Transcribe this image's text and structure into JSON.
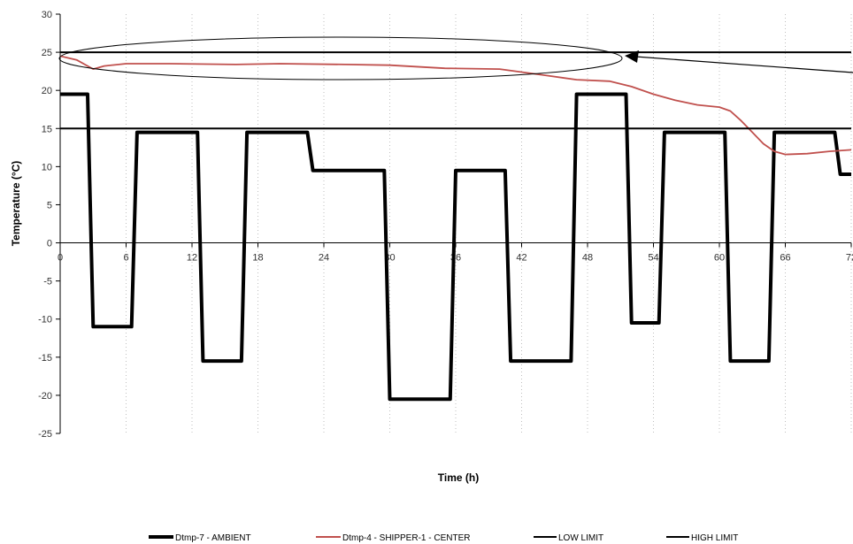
{
  "chart_data": {
    "type": "line",
    "title": "",
    "xlabel": "Time (h)",
    "ylabel": "Temperature (°C)",
    "xlim": [
      0,
      72
    ],
    "ylim": [
      -25,
      30
    ],
    "x_ticks": [
      0,
      6,
      12,
      18,
      24,
      30,
      36,
      42,
      48,
      54,
      60,
      66,
      72
    ],
    "x_tick_labels": [
      "0",
      "6",
      "12",
      "18",
      "24",
      "30",
      "36",
      "42",
      "48",
      "54",
      "60",
      "66",
      "72"
    ],
    "y_ticks": [
      -25,
      -20,
      -15,
      -10,
      -5,
      0,
      5,
      10,
      15,
      20,
      25,
      30
    ],
    "grid": "vertical dotted",
    "legend_position": "bottom",
    "series": [
      {
        "name": "Dtmp-7 - AMBIENT",
        "color": "#000000",
        "x": [
          0,
          2.5,
          3.0,
          6.5,
          7.0,
          12.5,
          13.0,
          16.5,
          17.0,
          22.5,
          23.0,
          29.5,
          30.0,
          35.5,
          36.0,
          40.5,
          41.0,
          46.5,
          47.0,
          51.5,
          52.0,
          54.5,
          55.0,
          60.5,
          61.0,
          64.5,
          65.0,
          70.5,
          71.0,
          72
        ],
        "y": [
          19.5,
          19.5,
          -11,
          -11,
          14.5,
          14.5,
          -15.5,
          -15.5,
          14.5,
          14.5,
          9.5,
          9.5,
          -20.5,
          -20.5,
          9.5,
          9.5,
          -15.5,
          -15.5,
          19.5,
          19.5,
          -10.5,
          -10.5,
          14.5,
          14.5,
          -15.5,
          -15.5,
          14.5,
          14.5,
          9.0,
          9.0
        ]
      },
      {
        "name": "Dtmp-4 - SHIPPER-1 - CENTER",
        "color": "#c0504d",
        "x": [
          0,
          1.5,
          3,
          4,
          6,
          10,
          16,
          20,
          26,
          30,
          35,
          40,
          44,
          47,
          50,
          52,
          54,
          56,
          58,
          60,
          61,
          62,
          63,
          64,
          65,
          66,
          68,
          70,
          72
        ],
        "y": [
          24.5,
          24.0,
          22.8,
          23.2,
          23.5,
          23.5,
          23.4,
          23.5,
          23.4,
          23.3,
          22.9,
          22.8,
          22.0,
          21.4,
          21.2,
          20.5,
          19.5,
          18.7,
          18.1,
          17.8,
          17.3,
          16.0,
          14.5,
          13.0,
          12.0,
          11.6,
          11.7,
          12.0,
          12.2
        ]
      },
      {
        "name": "LOW LIMIT",
        "color": "#000000",
        "x": [
          0,
          72
        ],
        "y": [
          15,
          15
        ]
      },
      {
        "name": "HIGH LIMIT",
        "color": "#000000",
        "x": [
          0,
          72
        ],
        "y": [
          25,
          25
        ]
      }
    ]
  }
}
